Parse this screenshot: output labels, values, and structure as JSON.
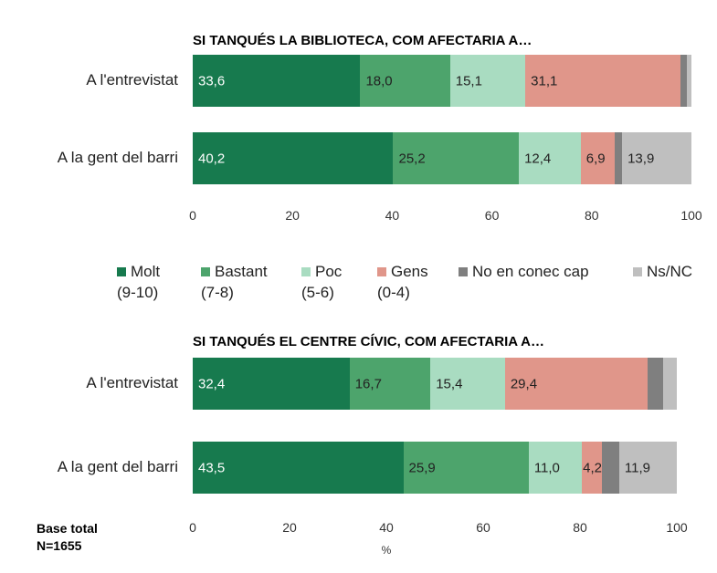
{
  "chart_data": [
    {
      "type": "bar",
      "orientation": "horizontal",
      "stacked": true,
      "title": "SI TANQUÉS LA BIBLIOTECA, COM AFECTARIA A…",
      "categories": [
        "A l'entrevistat",
        "A la gent del barri"
      ],
      "series": [
        {
          "name": "Molt (9-10)",
          "values": [
            33.6,
            40.2
          ],
          "labels": [
            "33,6",
            "40,2"
          ]
        },
        {
          "name": "Bastant (7-8)",
          "values": [
            18.0,
            25.2
          ],
          "labels": [
            "18,0",
            "25,2"
          ]
        },
        {
          "name": "Poc (5-6)",
          "values": [
            15.1,
            12.4
          ],
          "labels": [
            "15,1",
            "12,4"
          ]
        },
        {
          "name": "Gens (0-4)",
          "values": [
            31.1,
            6.9
          ],
          "labels": [
            "31,1",
            "6,9"
          ]
        },
        {
          "name": "No en conec cap",
          "values": [
            1.3,
            1.4
          ],
          "labels": [
            "",
            ""
          ]
        },
        {
          "name": "Ns/NC",
          "values": [
            0.9,
            13.9
          ],
          "labels": [
            "",
            "13,9"
          ]
        }
      ],
      "xticks": [
        "0",
        "20",
        "40",
        "60",
        "80",
        "100"
      ],
      "xlim": [
        0,
        100
      ]
    },
    {
      "type": "bar",
      "orientation": "horizontal",
      "stacked": true,
      "title": "SI TANQUÉS EL CENTRE CÍVIC, COM AFECTARIA A…",
      "categories": [
        "A l'entrevistat",
        "A la gent del barri"
      ],
      "series": [
        {
          "name": "Molt (9-10)",
          "values": [
            32.4,
            43.5
          ],
          "labels": [
            "32,4",
            "43,5"
          ]
        },
        {
          "name": "Bastant (7-8)",
          "values": [
            16.7,
            25.9
          ],
          "labels": [
            "16,7",
            "25,9"
          ]
        },
        {
          "name": "Poc (5-6)",
          "values": [
            15.4,
            11.0
          ],
          "labels": [
            "15,4",
            "11,0"
          ]
        },
        {
          "name": "Gens (0-4)",
          "values": [
            29.4,
            4.2
          ],
          "labels": [
            "29,4",
            "4,2"
          ]
        },
        {
          "name": "No en conec cap",
          "values": [
            3.3,
            3.5
          ],
          "labels": [
            "",
            ""
          ]
        },
        {
          "name": "Ns/NC",
          "values": [
            2.8,
            11.9
          ],
          "labels": [
            "",
            "11,9"
          ]
        }
      ],
      "xticks": [
        "0",
        "20",
        "40",
        "60",
        "80",
        "100"
      ],
      "xlim": [
        0,
        100
      ],
      "xlabel": "%"
    }
  ],
  "legend": [
    {
      "label": "Molt",
      "sub": "(9-10)",
      "color": "#177a4e"
    },
    {
      "label": "Bastant",
      "sub": "(7-8)",
      "color": "#4da46c"
    },
    {
      "label": "Poc",
      "sub": "(5-6)",
      "color": "#a9dcc1"
    },
    {
      "label": "Gens",
      "sub": "(0-4)",
      "color": "#e0968a"
    },
    {
      "label": "No en conec cap",
      "sub": "",
      "color": "#7f7f7f"
    },
    {
      "label": "Ns/NC",
      "sub": "",
      "color": "#bfbfbf"
    }
  ],
  "label_colors": [
    "#ffffff",
    "#222222",
    "#222222",
    "#222222",
    "#222222",
    "#222222"
  ],
  "footer": {
    "base_label": "Base total",
    "n_label": "N=1655"
  }
}
